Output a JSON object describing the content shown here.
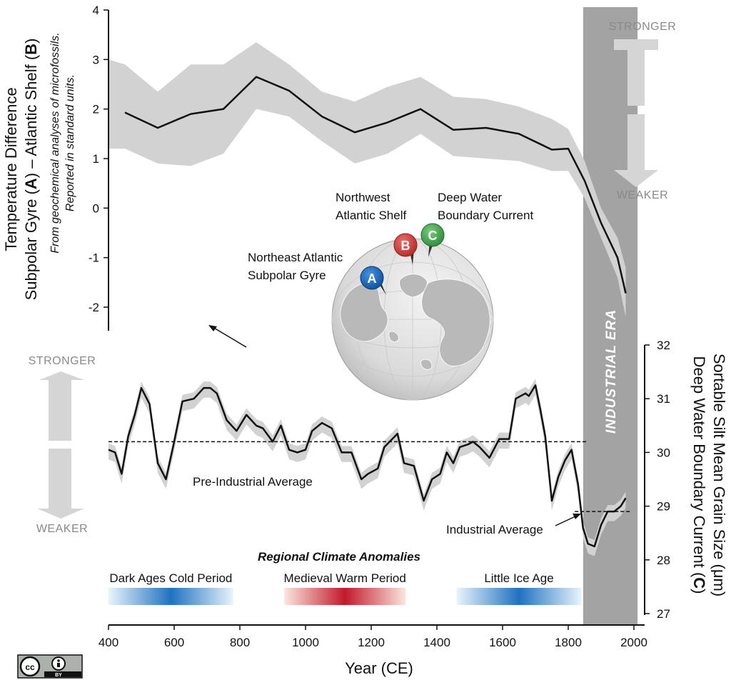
{
  "chart_data": [
    {
      "type": "line",
      "series": [
        {
          "x": [
            450,
            550,
            650,
            750,
            850,
            950,
            1050,
            1150,
            1250,
            1350,
            1450,
            1550,
            1650,
            1750,
            1800,
            1850,
            1900,
            1950,
            1975
          ],
          "values": [
            1.93,
            1.62,
            1.9,
            2.0,
            2.65,
            2.37,
            1.85,
            1.53,
            1.73,
            2.0,
            1.58,
            1.62,
            1.5,
            1.18,
            1.2,
            0.55,
            -0.3,
            -1.0,
            -1.72
          ],
          "lower": [
            1.2,
            0.9,
            0.85,
            1.1,
            2.0,
            1.85,
            1.35,
            0.9,
            1.1,
            1.5,
            1.05,
            1.0,
            0.95,
            0.75,
            0.75,
            0.2,
            -0.6,
            -1.4,
            -2.2
          ],
          "upper": [
            2.9,
            2.35,
            2.9,
            2.9,
            3.35,
            2.9,
            2.35,
            2.15,
            2.45,
            2.65,
            2.25,
            2.2,
            2.05,
            1.8,
            1.6,
            0.95,
            0.0,
            -0.6,
            -1.2
          ]
        }
      ],
      "ylim": [
        -2.5,
        4
      ],
      "yticks": [
        4,
        3,
        2,
        1,
        0,
        -1,
        -2
      ],
      "ylabel_line1": "Temperature Difference",
      "ylabel_line2_part1": "Subpolar Gyre (",
      "ylabel_line2_A": "A",
      "ylabel_line2_part2": ") – Atlantic Shelf (",
      "ylabel_line2_B": "B",
      "ylabel_line2_part3": ")",
      "ylabel_sub1": "From geochemical analyses of microfossils.",
      "ylabel_sub2": "Reported in standard units.",
      "strength_top": "STRONGER",
      "strength_bottom": "WEAKER"
    },
    {
      "type": "line",
      "series": [
        {
          "x": [
            400,
            420,
            440,
            460,
            480,
            500,
            525,
            550,
            575,
            600,
            625,
            660,
            690,
            710,
            730,
            760,
            790,
            820,
            850,
            870,
            900,
            925,
            950,
            975,
            1000,
            1020,
            1050,
            1080,
            1110,
            1140,
            1170,
            1190,
            1220,
            1240,
            1280,
            1300,
            1330,
            1360,
            1385,
            1410,
            1430,
            1450,
            1470,
            1495,
            1510,
            1530,
            1560,
            1590,
            1620,
            1640,
            1670,
            1680,
            1700,
            1715,
            1730,
            1750,
            1770,
            1790,
            1810,
            1830,
            1845,
            1860,
            1880,
            1900,
            1920,
            1940,
            1960,
            1975
          ],
          "values": [
            30.05,
            30.0,
            29.6,
            30.3,
            30.7,
            31.2,
            30.9,
            29.8,
            29.5,
            30.2,
            30.95,
            31.0,
            31.2,
            31.2,
            31.1,
            30.6,
            30.4,
            30.7,
            30.5,
            30.45,
            30.2,
            30.5,
            30.05,
            30.0,
            30.05,
            30.4,
            30.55,
            30.45,
            30.0,
            30.0,
            29.5,
            29.6,
            29.7,
            30.1,
            30.35,
            29.8,
            29.75,
            29.1,
            29.5,
            29.6,
            30.0,
            29.8,
            30.1,
            30.15,
            30.2,
            30.1,
            29.9,
            30.25,
            30.25,
            31.0,
            31.1,
            31.05,
            31.25,
            30.8,
            30.3,
            29.1,
            29.55,
            29.85,
            30.05,
            29.4,
            28.6,
            28.3,
            28.25,
            28.65,
            28.9,
            28.9,
            29.0,
            29.15
          ],
          "band_halfwidth": 0.12
        }
      ],
      "ylim": [
        27,
        32
      ],
      "yticks": [
        32,
        31,
        30,
        29,
        28,
        27
      ],
      "ylabel_line1": "Sortable Silt Mean Grain Size (μm)",
      "ylabel_line2_part1": "Deep Water Boundary Current (",
      "ylabel_line2_C": "C",
      "ylabel_line2_part2": ")",
      "pre_industrial_average": 30.2,
      "industrial_average": 28.9,
      "pre_industrial_label": "Pre-Industrial Average",
      "industrial_label": "Industrial Average",
      "strength_top": "STRONGER",
      "strength_bottom": "WEAKER"
    }
  ],
  "x_axis": {
    "label": "Year (CE)",
    "ticks": [
      400,
      600,
      800,
      1000,
      1200,
      1400,
      1600,
      1800,
      2000
    ],
    "xlim": [
      400,
      2000
    ]
  },
  "industrial_era": {
    "label": "INDUSTRIAL ERA",
    "start": 1850,
    "end": 1985,
    "color": "#a3a3a3"
  },
  "climate_anomalies": {
    "title": "Regional Climate Anomalies",
    "periods": [
      {
        "label": "Dark Ages Cold Period",
        "start": 400,
        "end": 780,
        "kind": "cold"
      },
      {
        "label": "Medieval Warm Period",
        "start": 935,
        "end": 1305,
        "kind": "warm"
      },
      {
        "label": "Little Ice Age",
        "start": 1460,
        "end": 1840,
        "kind": "cold"
      }
    ]
  },
  "locations": {
    "A": {
      "letter": "A",
      "label_line1": "Northeast Atlantic",
      "label_line2": "Subpolar Gyre",
      "color": "#1560b0"
    },
    "B": {
      "letter": "B",
      "label_line1": "Northwest",
      "label_line2": "Atlantic Shelf",
      "color": "#d03a35"
    },
    "C": {
      "letter": "C",
      "label_line1": "Deep Water",
      "label_line2": "Boundary Current",
      "color": "#3ea84a"
    }
  },
  "license": {
    "cc": "cc",
    "by": "BY"
  },
  "colors": {
    "band": "#d2d2d2",
    "line": "#111111",
    "arrow": "#d5d5d5",
    "strength_text": "#8a8a8a"
  }
}
